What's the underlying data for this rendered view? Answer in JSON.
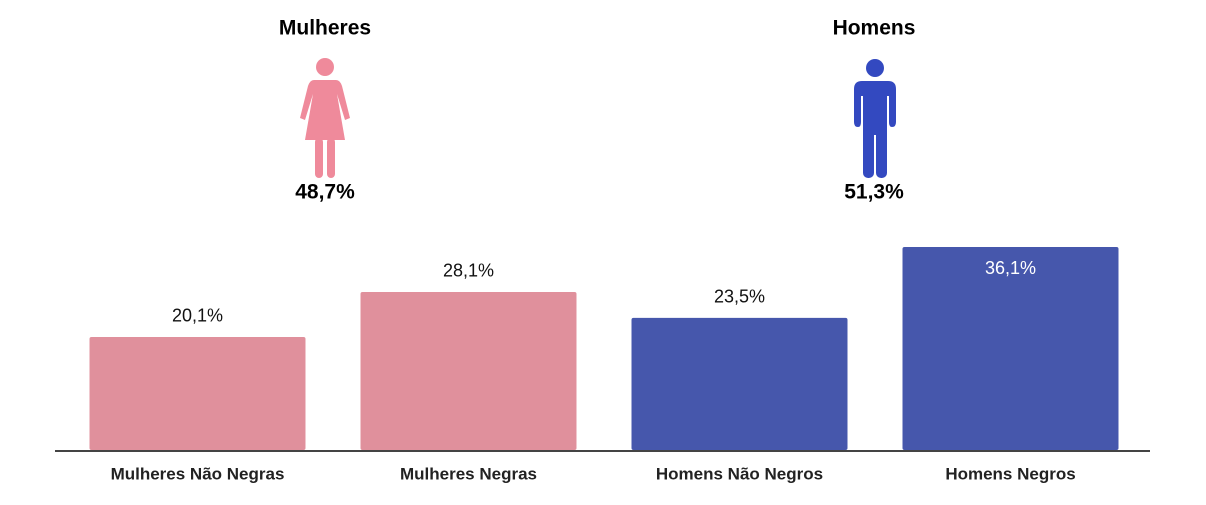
{
  "groups": [
    {
      "name": "Mulheres",
      "value": 48.7,
      "value_label": "48,7%",
      "color": "#ef8a9b"
    },
    {
      "name": "Homens",
      "value": 51.3,
      "value_label": "51,3%",
      "color": "#3349c0"
    }
  ],
  "chart_data": {
    "type": "bar",
    "categories": [
      "Mulheres Não Negras",
      "Mulheres Negras",
      "Homens Não Negros",
      "Homens Negros"
    ],
    "values": [
      20.1,
      28.1,
      23.5,
      36.1
    ],
    "value_labels": [
      "20,1%",
      "28,1%",
      "23,5%",
      "36,1%"
    ],
    "colors": [
      "#e0909c",
      "#e0909c",
      "#4657ac",
      "#4657ac"
    ]
  }
}
